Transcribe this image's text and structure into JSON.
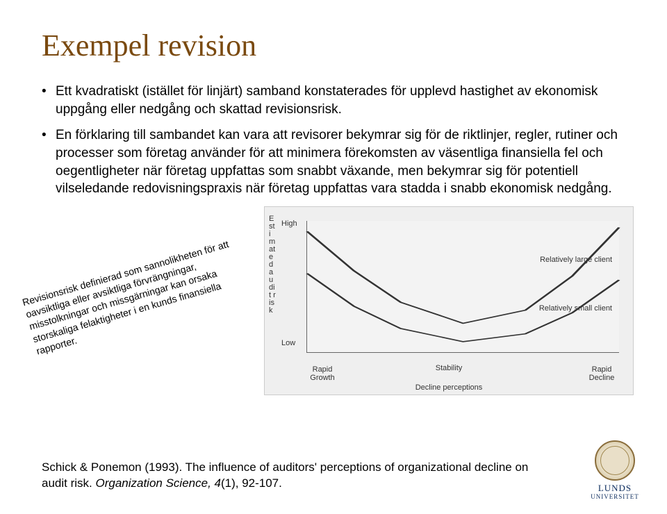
{
  "title": "Exempel revision",
  "title_color": "#7a4a10",
  "title_fontsize": 44,
  "bullets": [
    "Ett kvadratiskt (istället för linjärt) samband konstaterades för upplevd hastighet av ekonomisk  uppgång eller nedgång och skattad revisionsrisk.",
    "En förklaring till sambandet kan vara att revisorer bekymrar sig för de riktlinjer, regler, rutiner och processer som företag använder för att minimera förekomsten av väsentliga finansiella fel och oegentligheter när företag uppfattas som snabbt växande, men bekymrar sig för potentiell vilseledande redovisningspraxis när företag uppfattas vara stadda i snabb ekonomisk nedgång."
  ],
  "rotated_note": "Revisionsrisk definierad som sannolikheten för att oavsiktliga eller avsiktliga förvrängningar, misstolkningar och missgärningar kan orsaka storskaliga felaktigheter i en kunds finansiella rapporter.",
  "footer_citation_plain": "Schick & Ponemon (1993). The influence of auditors' perceptions of organizational decline on audit risk. ",
  "footer_citation_italic": "Organization Science, 4",
  "footer_citation_tail": "(1), 92-107.",
  "logo": {
    "name": "LUNDS",
    "sub": "UNIVERSITET"
  },
  "chart": {
    "type": "line",
    "background_color": "#efefef",
    "plot_bg": "#f3f3f3",
    "axis_color": "#666666",
    "y_axis": {
      "title_vertical": "Estimated audit risk",
      "tick_high": "High",
      "tick_low": "Low",
      "title_fontsize": 11
    },
    "x_axis": {
      "title": "Decline perceptions",
      "ticks": [
        "Rapid\nGrowth",
        "Stability",
        "Rapid\nDecline"
      ],
      "title_fontsize": 11
    },
    "annotations": {
      "large": "Relatively large client",
      "small": "Relatively small client"
    },
    "curves": {
      "large_client": {
        "color": "#333333",
        "line_width": 1.5,
        "points_xy_norm": [
          [
            0.0,
            0.92
          ],
          [
            0.15,
            0.62
          ],
          [
            0.3,
            0.38
          ],
          [
            0.5,
            0.22
          ],
          [
            0.7,
            0.32
          ],
          [
            0.85,
            0.58
          ],
          [
            1.0,
            0.95
          ]
        ]
      },
      "small_client": {
        "color": "#333333",
        "line_width": 1.5,
        "points_xy_norm": [
          [
            0.0,
            0.6
          ],
          [
            0.15,
            0.35
          ],
          [
            0.3,
            0.18
          ],
          [
            0.5,
            0.08
          ],
          [
            0.7,
            0.14
          ],
          [
            0.85,
            0.3
          ],
          [
            1.0,
            0.55
          ]
        ]
      }
    }
  }
}
